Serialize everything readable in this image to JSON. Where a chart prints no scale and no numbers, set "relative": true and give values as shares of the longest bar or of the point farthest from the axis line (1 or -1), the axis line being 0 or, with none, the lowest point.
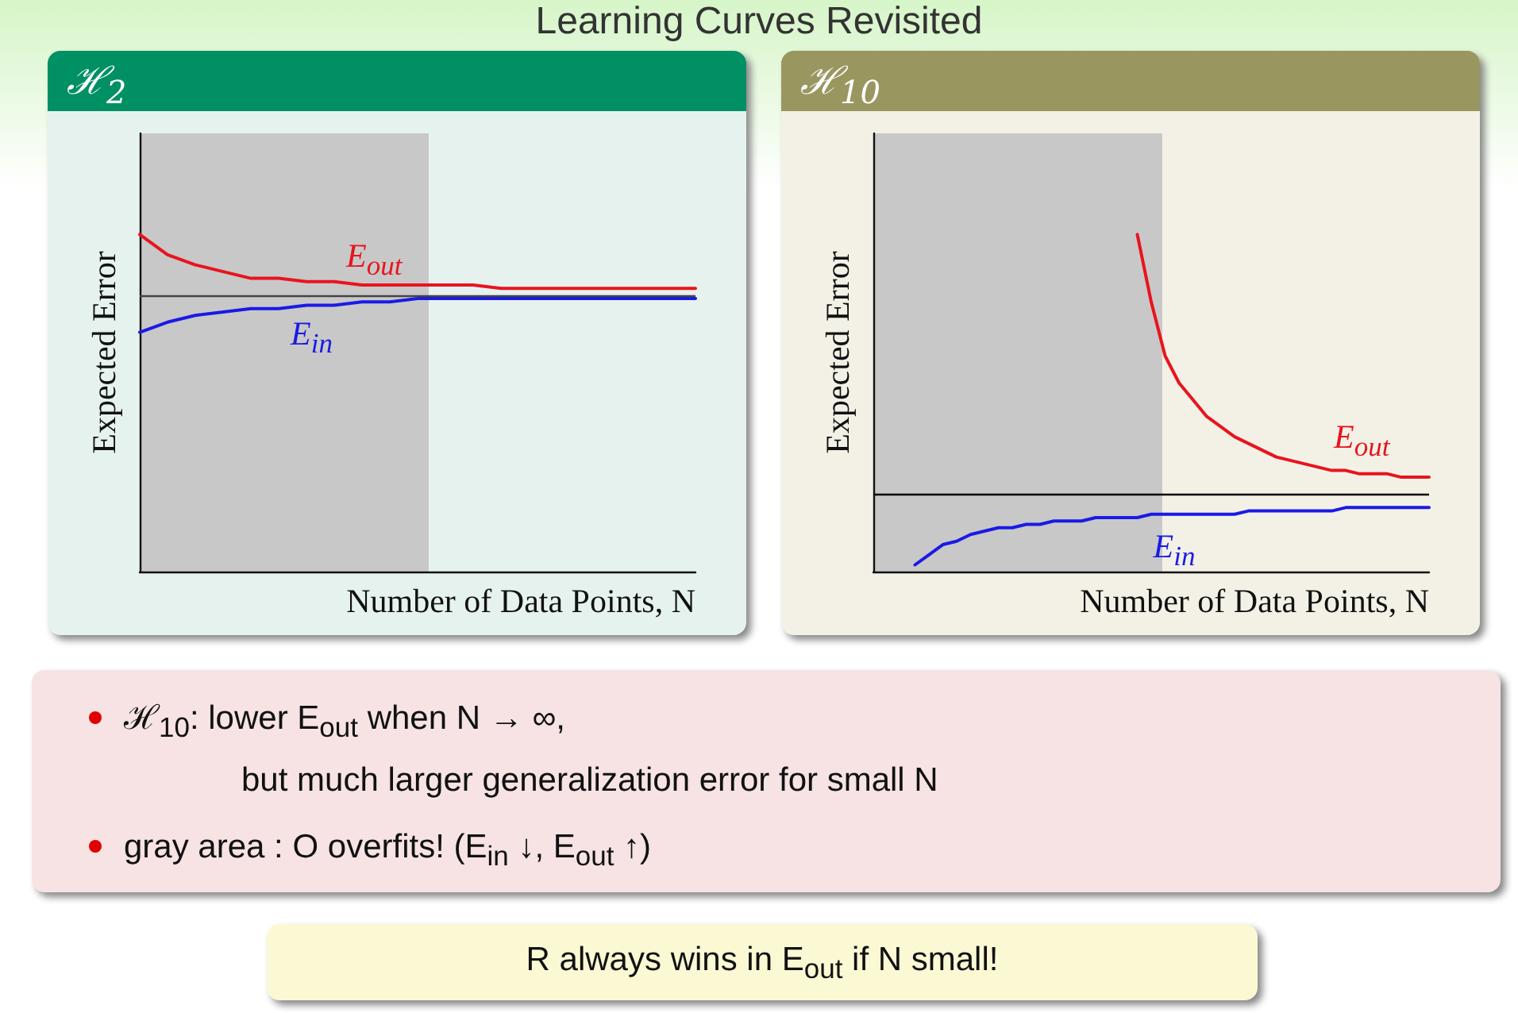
{
  "chart_data": [
    {
      "type": "other",
      "title": "Learning Curves Revisited"
    },
    {
      "type": "line",
      "title": "ℋ$_{2}$",
      "xlabel": "Number of Data Points, N",
      "ylabel": "Expected Error",
      "relative": true,
      "grid": false,
      "legend": false,
      "marker": "none",
      "categories": [
        null,
        null,
        null,
        null,
        null,
        null,
        null,
        null,
        null,
        null,
        null,
        null,
        null,
        null,
        null,
        null,
        null,
        null,
        null,
        null,
        null
      ],
      "series": [
        {
          "name": "E$_{out}$",
          "color": "#e8141e",
          "values": [
            1,
            0.94,
            0.91,
            0.89,
            0.87,
            0.87,
            0.86,
            0.86,
            0.85,
            0.85,
            0.85,
            0.85,
            0.85,
            0.84,
            0.84,
            0.84,
            0.84,
            0.84,
            0.84,
            0.84,
            0.84
          ]
        },
        {
          "name": "E$_{in}$",
          "color": "#1a1ae6",
          "values": [
            0.71,
            0.74,
            0.76,
            0.77,
            0.78,
            0.78,
            0.79,
            0.79,
            0.8,
            0.8,
            0.81,
            0.81,
            0.81,
            0.81,
            0.81,
            0.81,
            0.81,
            0.81,
            0.81,
            0.81,
            0.81
          ]
        }
      ],
      "ref_lines": [
        {
          "axis": "y",
          "value": 0.82,
          "color": "#444444"
        }
      ]
    },
    {
      "type": "line",
      "title": "ℋ$_{10}$",
      "xlabel": "Number of Data Points, N",
      "ylabel": "Expected Error",
      "relative": true,
      "grid": false,
      "legend": false,
      "marker": "none",
      "categories": [
        null,
        null,
        null,
        null,
        null,
        null,
        null,
        null,
        null,
        null,
        null,
        null,
        null,
        null,
        null,
        null,
        null,
        null,
        null,
        null,
        null,
        null,
        null,
        null,
        null,
        null,
        null,
        null,
        null,
        null,
        null,
        null,
        null,
        null,
        null,
        null,
        null,
        null,
        null,
        null,
        null
      ],
      "series": [
        {
          "name": "E$_{out}$",
          "color": "#e8141e",
          "values": [
            null,
            null,
            null,
            null,
            null,
            null,
            null,
            null,
            null,
            null,
            null,
            null,
            null,
            null,
            null,
            null,
            null,
            null,
            null,
            1,
            0.8,
            0.64,
            0.56,
            0.51,
            0.46,
            0.43,
            0.4,
            0.38,
            0.36,
            0.34,
            0.33,
            0.32,
            0.31,
            0.3,
            0.3,
            0.29,
            0.29,
            0.29,
            0.28,
            0.28,
            0.28
          ]
        },
        {
          "name": "E$_{in}$",
          "color": "#1a1ae6",
          "values": [
            null,
            null,
            null,
            0.02,
            0.05,
            0.08,
            0.09,
            0.11,
            0.12,
            0.13,
            0.13,
            0.14,
            0.14,
            0.15,
            0.15,
            0.15,
            0.16,
            0.16,
            0.16,
            0.16,
            0.17,
            0.17,
            0.17,
            0.17,
            0.17,
            0.17,
            0.17,
            0.18,
            0.18,
            0.18,
            0.18,
            0.18,
            0.18,
            0.18,
            0.19,
            0.19,
            0.19,
            0.19,
            0.19,
            0.19,
            0.19
          ]
        }
      ],
      "ref_lines": [
        {
          "axis": "y",
          "value": 0.23,
          "color": "#000000"
        }
      ]
    },
    {
      "type": "other",
      "annotations": [
        "ℋ$_{10}$: lower E$_{out}$ when N → ∞,",
        "but much larger generalization error for small N",
        "gray area : O overfits! (E$_{in}$ ↓, E$_{out}$ ↑)"
      ]
    },
    {
      "type": "other",
      "annotations": [
        "R always wins in E$_{out}$ if N small!"
      ]
    }
  ]
}
